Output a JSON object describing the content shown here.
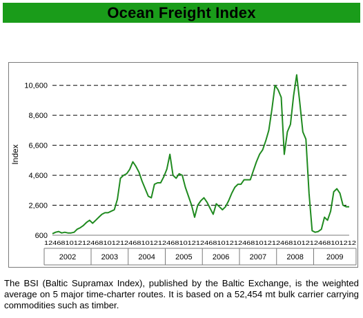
{
  "header": {
    "title": "Ocean Freight Index"
  },
  "caption": "The BSI (Baltic Supramax Index), published by the Baltic Exchange, is the weighted average on 5 major time-charter routes. It is based on a 52,454 mt bulk carrier carrying commodities such as timber.",
  "colors": {
    "banner": "#1a9c1a",
    "line": "#1f8a1f",
    "grid": "#000000"
  },
  "chart_data": {
    "type": "line",
    "title": "",
    "xlabel": "",
    "ylabel": "Index",
    "ylim": [
      600,
      11600
    ],
    "yticks": [
      600,
      2600,
      4600,
      6600,
      8600,
      10600
    ],
    "ytick_labels": [
      "600",
      "2,600",
      "4,600",
      "6,600",
      "8,600",
      "10,600"
    ],
    "grid": "horizontal dashed",
    "month_tick_labels": "12468101212468101212468101212468101212468101212468101212468101212468101212",
    "year_labels": [
      "2002",
      "2003",
      "2004",
      "2005",
      "2006",
      "2007",
      "2008",
      "2009"
    ],
    "series": [
      {
        "name": "",
        "x_start": "2001-12",
        "interval": "month",
        "values": [
          700,
          800,
          850,
          750,
          800,
          750,
          750,
          800,
          1000,
          1100,
          1250,
          1450,
          1600,
          1400,
          1600,
          1800,
          2000,
          2100,
          2100,
          2200,
          2300,
          3000,
          4400,
          4600,
          4700,
          5000,
          5500,
          5200,
          4800,
          4200,
          3700,
          3200,
          3100,
          4000,
          4100,
          4100,
          4500,
          5000,
          6000,
          4600,
          4400,
          4700,
          4600,
          3800,
          3200,
          2600,
          1800,
          2600,
          2900,
          3100,
          2800,
          2400,
          2000,
          2700,
          2500,
          2300,
          2500,
          2900,
          3400,
          3800,
          4000,
          4000,
          4300,
          4300,
          4300,
          4900,
          5500,
          6000,
          6300,
          6900,
          7600,
          9000,
          10600,
          10300,
          9800,
          6000,
          7500,
          8000,
          9900,
          11300,
          9500,
          7500,
          7000,
          3400,
          900,
          800,
          850,
          1000,
          1800,
          1600,
          2200,
          3500,
          3700,
          3400,
          2600,
          2500,
          2500
        ]
      }
    ]
  }
}
